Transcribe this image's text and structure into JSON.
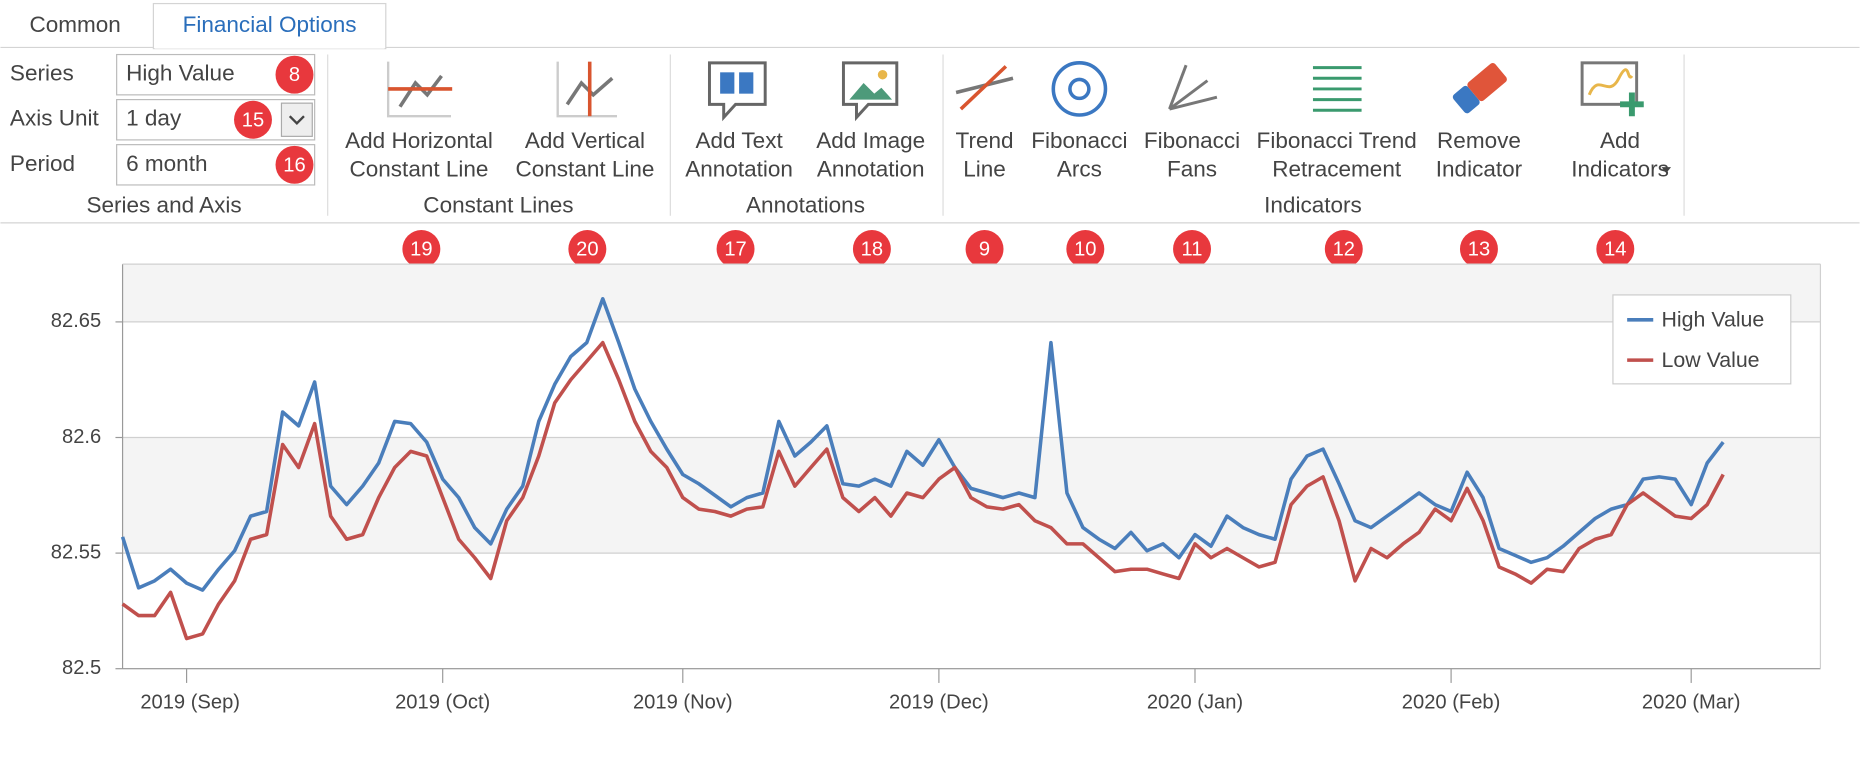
{
  "tabs": [
    "Common",
    "Financial Options"
  ],
  "ribbon": {
    "groups": [
      {
        "label": "Series and Axis",
        "fields": [
          {
            "label": "Series",
            "value": "High Value",
            "badge": "8"
          },
          {
            "label": "Axis Unit",
            "value": "1 day",
            "badge": "15"
          },
          {
            "label": "Period",
            "value": "6 month",
            "badge": "16"
          }
        ]
      },
      {
        "label": "Constant Lines",
        "buttons": [
          {
            "label": [
              "Add Horizontal",
              "Constant Line"
            ],
            "badge": "19"
          },
          {
            "label": [
              "Add Vertical",
              "Constant Line"
            ],
            "badge": "20"
          }
        ]
      },
      {
        "label": "Annotations",
        "buttons": [
          {
            "label": [
              "Add Text",
              "Annotation"
            ],
            "badge": "17"
          },
          {
            "label": [
              "Add Image",
              "Annotation"
            ],
            "badge": "18"
          }
        ]
      },
      {
        "label": "Indicators",
        "buttons": [
          {
            "label": [
              "Trend",
              "Line"
            ],
            "badge": "9"
          },
          {
            "label": [
              "Fibonacci",
              "Arcs"
            ],
            "badge": "10"
          },
          {
            "label": [
              "Fibonacci",
              "Fans"
            ],
            "badge": "11"
          },
          {
            "label": [
              "Fibonacci Trend",
              "Retracement"
            ],
            "badge": "12"
          },
          {
            "label": [
              "Remove",
              "Indicator"
            ],
            "badge": "13"
          },
          {
            "label": [
              "Add",
              "Indicators"
            ],
            "badge": "14"
          }
        ]
      }
    ]
  },
  "chart_data": {
    "type": "line",
    "categories": [
      null,
      null,
      null,
      null,
      "2019 (Sep)",
      null,
      null,
      null,
      null,
      null,
      null,
      null,
      null,
      null,
      null,
      null,
      null,
      null,
      null,
      null,
      "2019 (Oct)",
      null,
      null,
      null,
      null,
      null,
      null,
      null,
      null,
      null,
      null,
      null,
      null,
      null,
      null,
      "2019 (Nov)",
      null,
      null,
      null,
      null,
      null,
      null,
      null,
      null,
      null,
      null,
      null,
      null,
      null,
      null,
      null,
      "2019 (Dec)",
      null,
      null,
      null,
      null,
      null,
      null,
      null,
      null,
      null,
      null,
      null,
      null,
      null,
      null,
      null,
      "2020 (Jan)",
      null,
      null,
      null,
      null,
      null,
      null,
      null,
      null,
      null,
      null,
      null,
      null,
      null,
      null,
      null,
      "2020 (Feb)",
      null,
      null,
      null,
      null,
      null,
      null,
      null,
      null,
      null,
      null,
      null,
      null,
      null,
      null,
      "2020 (Mar)",
      null,
      null
    ],
    "series": [
      {
        "name": "High Value",
        "color": "#4a7ebb",
        "values": [
          82.557,
          82.535,
          82.538,
          82.543,
          82.537,
          82.534,
          82.543,
          82.551,
          82.566,
          82.568,
          82.611,
          82.605,
          82.624,
          82.579,
          82.571,
          82.579,
          82.589,
          82.607,
          82.606,
          82.598,
          82.582,
          82.574,
          82.561,
          82.554,
          82.569,
          82.579,
          82.607,
          82.623,
          82.635,
          82.641,
          82.66,
          82.641,
          82.621,
          82.607,
          82.595,
          82.584,
          82.58,
          82.575,
          82.57,
          82.574,
          82.576,
          82.607,
          82.592,
          82.598,
          82.605,
          82.58,
          82.579,
          82.582,
          82.579,
          82.594,
          82.588,
          82.599,
          82.587,
          82.578,
          82.576,
          82.574,
          82.576,
          82.574,
          82.641,
          82.576,
          82.561,
          82.556,
          82.552,
          82.559,
          82.551,
          82.554,
          82.548,
          82.558,
          82.553,
          82.566,
          82.561,
          82.558,
          82.556,
          82.582,
          82.592,
          82.595,
          82.58,
          82.564,
          82.561,
          82.566,
          82.571,
          82.576,
          82.571,
          82.568,
          82.585,
          82.574,
          82.552,
          82.549,
          82.546,
          82.548,
          82.553,
          82.559,
          82.565,
          82.569,
          82.571,
          82.582,
          82.583,
          82.582,
          82.571,
          82.589,
          82.598
        ]
      },
      {
        "name": "Low Value",
        "color": "#c0504d",
        "values": [
          82.528,
          82.523,
          82.523,
          82.533,
          82.513,
          82.515,
          82.528,
          82.538,
          82.556,
          82.558,
          82.597,
          82.587,
          82.606,
          82.566,
          82.556,
          82.558,
          82.574,
          82.587,
          82.594,
          82.592,
          82.574,
          82.556,
          82.548,
          82.539,
          82.564,
          82.574,
          82.592,
          82.615,
          82.625,
          82.633,
          82.641,
          82.625,
          82.607,
          82.594,
          82.587,
          82.574,
          82.569,
          82.568,
          82.566,
          82.569,
          82.57,
          82.594,
          82.579,
          82.587,
          82.595,
          82.574,
          82.568,
          82.574,
          82.566,
          82.576,
          82.574,
          82.582,
          82.587,
          82.574,
          82.57,
          82.569,
          82.571,
          82.564,
          82.561,
          82.554,
          82.554,
          82.548,
          82.542,
          82.543,
          82.543,
          82.541,
          82.539,
          82.554,
          82.548,
          82.552,
          82.548,
          82.544,
          82.546,
          82.571,
          82.579,
          82.583,
          82.564,
          82.538,
          82.552,
          82.548,
          82.554,
          82.559,
          82.569,
          82.564,
          82.578,
          82.564,
          82.544,
          82.541,
          82.537,
          82.543,
          82.542,
          82.552,
          82.556,
          82.558,
          82.571,
          82.576,
          82.571,
          82.566,
          82.565,
          82.571,
          82.584
        ]
      }
    ],
    "ylim": [
      82.5,
      82.675
    ],
    "yticks": [
      82.5,
      82.55,
      82.6,
      82.65
    ],
    "grid": true,
    "interlaced": true,
    "legend": "upper right"
  }
}
